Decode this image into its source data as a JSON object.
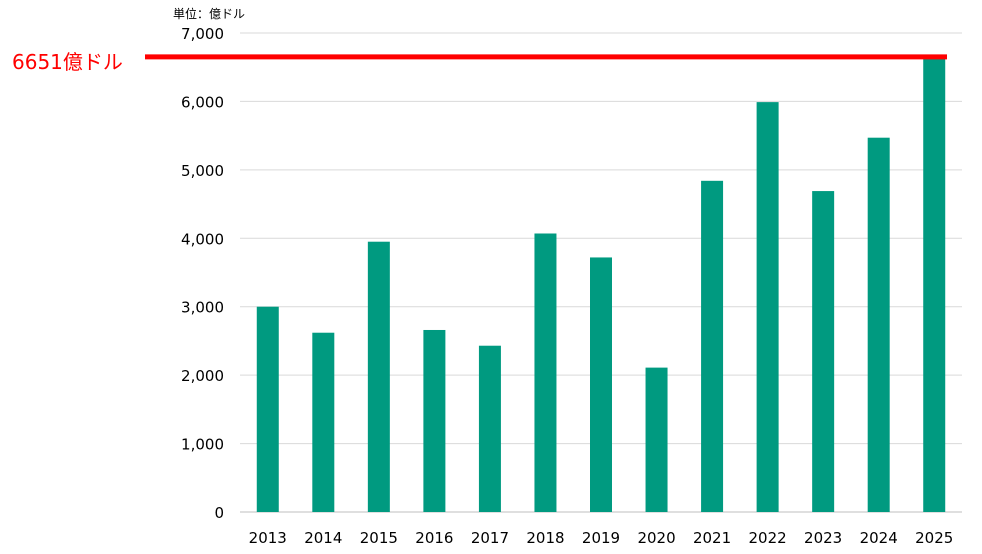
{
  "chart_data": {
    "type": "bar",
    "unit_label": "単位：億ドル",
    "categories": [
      "2013",
      "2014",
      "2015",
      "2016",
      "2017",
      "2018",
      "2019",
      "2020",
      "2021",
      "2022",
      "2023",
      "2024",
      "2025"
    ],
    "values": [
      3000,
      2620,
      3950,
      2660,
      2430,
      4070,
      3720,
      2110,
      4840,
      5990,
      4690,
      5470,
      6651
    ],
    "ylim": [
      0,
      7000
    ],
    "yticks": [
      0,
      1000,
      2000,
      3000,
      4000,
      5000,
      6000,
      7000
    ],
    "ytick_labels": [
      "0",
      "1,000",
      "2,000",
      "3,000",
      "4,000",
      "5,000",
      "6,000",
      "7,000"
    ],
    "grid": true,
    "bar_color": "#009a80",
    "reference_line": {
      "value": 6651,
      "label": "6651億ドル",
      "color": "#ff0000"
    }
  }
}
